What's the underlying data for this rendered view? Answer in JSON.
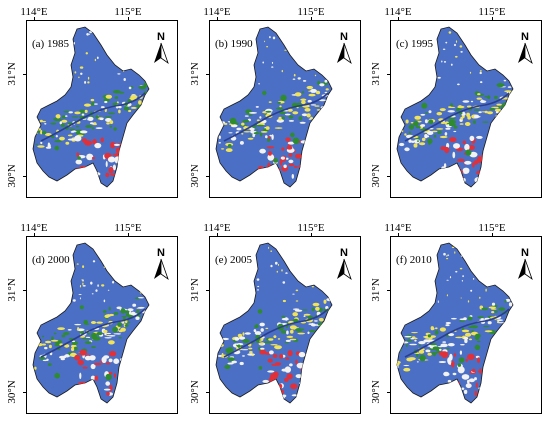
{
  "longitude_labels": [
    "114°E",
    "115°E"
  ],
  "latitude_labels": [
    "31°N",
    "30°N"
  ],
  "north_arrow_label": "N",
  "panels": [
    {
      "label": "(a) 1985"
    },
    {
      "label": "(b) 1990"
    },
    {
      "label": "(c) 1995"
    },
    {
      "label": "(d) 2000"
    },
    {
      "label": "(e) 2005"
    },
    {
      "label": "(f) 2010"
    }
  ],
  "colors": {
    "water_background": "#4b6fc4",
    "landuse_green": "#2e8b2e",
    "landuse_red": "#e0303a",
    "landuse_white": "#f2f2f2",
    "landuse_yellow": "#f0e35a",
    "border": "#1a1a1a"
  }
}
